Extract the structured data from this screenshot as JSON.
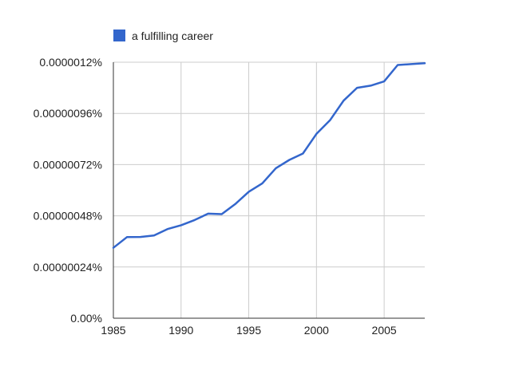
{
  "chart_data": {
    "type": "line",
    "title": "",
    "xlabel": "",
    "ylabel": "",
    "xlim": [
      1985,
      2008
    ],
    "ylim": [
      0,
      1.2e-06
    ],
    "x_ticks": [
      1985,
      1990,
      1995,
      2000,
      2005
    ],
    "x_tick_labels": [
      "1985",
      "1990",
      "1995",
      "2000",
      "2005"
    ],
    "y_ticks": [
      0,
      2.4e-07,
      4.8e-07,
      7.2e-07,
      9.6e-07,
      1.2e-06
    ],
    "y_tick_labels": [
      "0.00%",
      "0.00000024%",
      "0.00000048%",
      "0.00000072%",
      "0.00000096%",
      "0.0000012%"
    ],
    "grid": true,
    "legend_position": "top-left",
    "series": [
      {
        "name": "a fulfilling career",
        "color": "#3366cc",
        "x": [
          1985,
          1986,
          1987,
          1988,
          1989,
          1990,
          1991,
          1992,
          1993,
          1994,
          1995,
          1996,
          1997,
          1998,
          1999,
          2000,
          2001,
          2002,
          2003,
          2004,
          2005,
          2006,
          2007,
          2008
        ],
        "y": [
          3.3e-07,
          3.8e-07,
          3.81e-07,
          3.88e-07,
          4.18e-07,
          4.36e-07,
          4.6e-07,
          4.9e-07,
          4.88e-07,
          5.35e-07,
          5.93e-07,
          6.32e-07,
          7.03e-07,
          7.42e-07,
          7.72e-07,
          8.64e-07,
          9.28e-07,
          1.02e-06,
          1.08e-06,
          1.09e-06,
          1.11e-06,
          1.187e-06,
          1.191e-06,
          1.195e-06
        ]
      }
    ]
  }
}
